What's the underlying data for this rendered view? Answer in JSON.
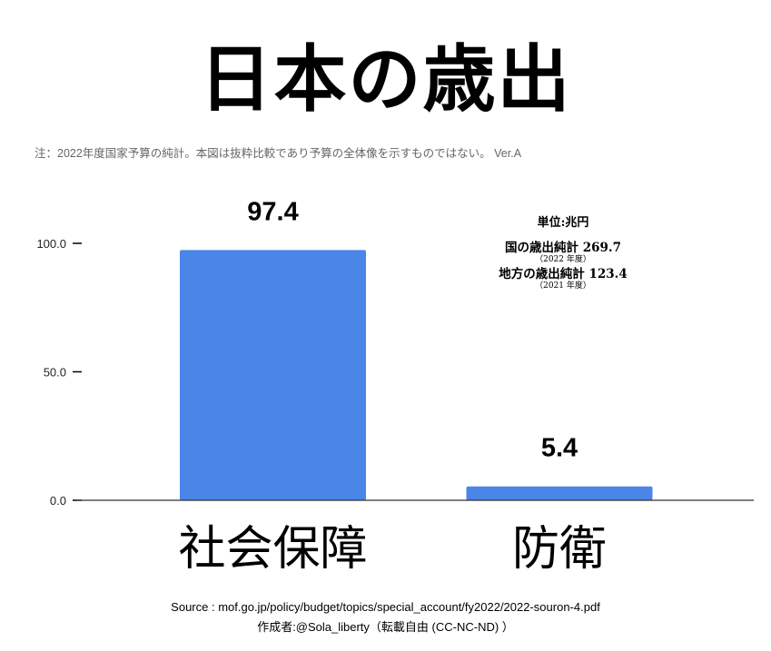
{
  "title": "日本の歳出",
  "note": "注：2022年度国家予算の純計。本図は抜粋比較であり予算の全体像を示すものではない。 Ver.A",
  "unit_box": {
    "unit": "単位:兆円",
    "national_label": "国の歳出純計 269.7",
    "national_year": "（2022 年度）",
    "local_label": "地方の歳出純計 123.4",
    "local_year": "（2021 年度）"
  },
  "chart_data": {
    "type": "bar",
    "title": "日本の歳出",
    "categories": [
      "社会保障",
      "防衛"
    ],
    "values": [
      97.4,
      5.4
    ],
    "data_labels": [
      "97.4",
      "5.4"
    ],
    "yticks": [
      "0.0",
      "50.0",
      "100.0"
    ],
    "ylim": [
      0,
      100
    ],
    "bar_color": "#4a86e8",
    "grid": false,
    "xlabel": "",
    "ylabel": ""
  },
  "footer": {
    "source": "Source : mof.go.jp/policy/budget/topics/special_account/fy2022/2022-souron-4.pdf",
    "author": "作成者:@Sola_liberty（転載自由 (CC-NC-ND) ）"
  }
}
